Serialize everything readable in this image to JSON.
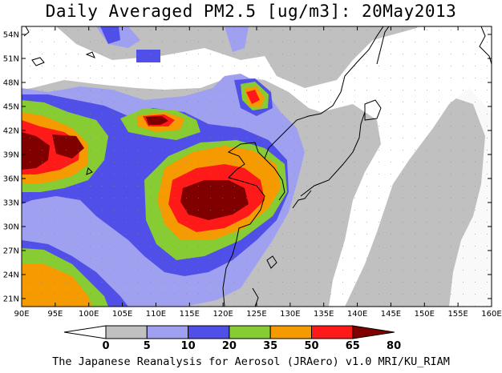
{
  "title": "Daily Averaged PM2.5 [ug/m3]: 20May2013",
  "credit": "The Japanese Reanalysis for Aerosol (JRAero) v1.0 MRI/KU_RIAM",
  "map": {
    "lon_range": [
      90,
      160
    ],
    "lat_range": [
      20,
      55
    ],
    "lat_ticks": [
      "54N",
      "51N",
      "48N",
      "45N",
      "42N",
      "39N",
      "36N",
      "33N",
      "30N",
      "27N",
      "24N",
      "21N"
    ],
    "lon_ticks": [
      "90E",
      "95E",
      "100E",
      "105E",
      "110E",
      "115E",
      "120E",
      "125E",
      "130E",
      "135E",
      "140E",
      "145E",
      "150E",
      "155E",
      "160E"
    ]
  },
  "colorbar": {
    "levels": [
      "0",
      "5",
      "10",
      "20",
      "35",
      "50",
      "65",
      "80"
    ],
    "colors": [
      "#ffffff",
      "#c0c0c0",
      "#a0a0f0",
      "#5050e8",
      "#88cc33",
      "#f59a00",
      "#ff1a1a",
      "#800000"
    ]
  }
}
